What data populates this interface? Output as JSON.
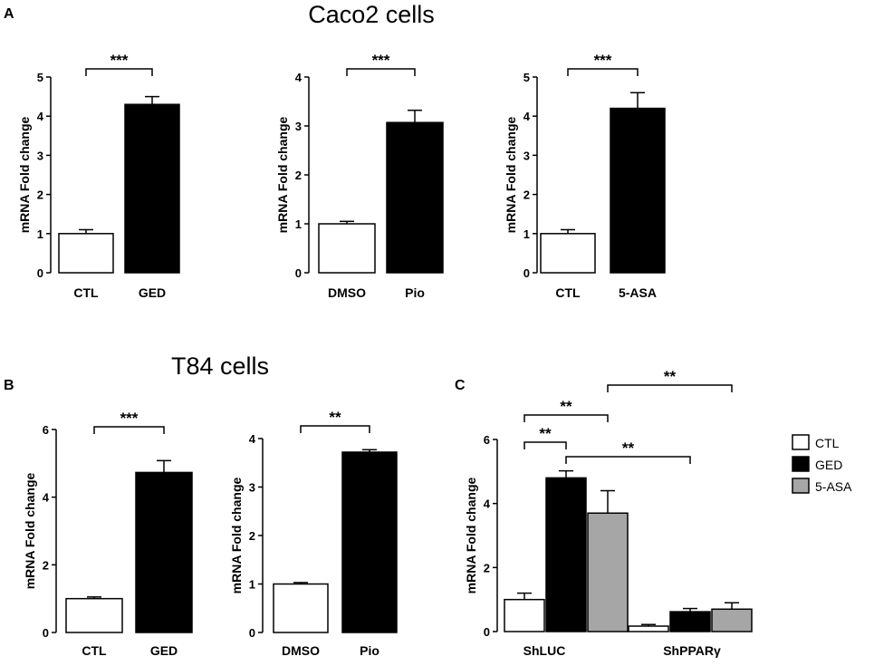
{
  "panel_labels": {
    "a": "A",
    "b": "B",
    "c": "C"
  },
  "section_titles": {
    "caco2": "Caco2 cells",
    "t84": "T84 cells"
  },
  "colors": {
    "CTL": "#ffffff",
    "GED": "#000000",
    "5-ASA": "#a6a6a6",
    "axis": "#000000"
  },
  "chart_data": [
    {
      "id": "A1",
      "type": "bar",
      "panel": "A",
      "categories": [
        "CTL",
        "GED"
      ],
      "values": [
        1.0,
        4.3
      ],
      "errors": [
        0.1,
        0.2
      ],
      "ylabel": "mRNA Fold change",
      "ylim": [
        0,
        5
      ],
      "yticks": [
        "0",
        "1",
        "2",
        "3",
        "4",
        "5"
      ],
      "significance": [
        {
          "from": 0,
          "to": 1,
          "label": "***"
        }
      ]
    },
    {
      "id": "A2",
      "type": "bar",
      "panel": "A",
      "categories": [
        "DMSO",
        "Pio"
      ],
      "values": [
        1.0,
        3.07
      ],
      "errors": [
        0.05,
        0.25
      ],
      "ylabel": "mRNA Fold change",
      "ylim": [
        0,
        4
      ],
      "yticks": [
        "0",
        "1",
        "2",
        "3",
        "4"
      ],
      "significance": [
        {
          "from": 0,
          "to": 1,
          "label": "***"
        }
      ]
    },
    {
      "id": "A3",
      "type": "bar",
      "panel": "A",
      "categories": [
        "CTL",
        "5-ASA"
      ],
      "values": [
        1.0,
        4.2
      ],
      "errors": [
        0.1,
        0.4
      ],
      "ylabel": "mRNA Fold change",
      "ylim": [
        0,
        5
      ],
      "yticks": [
        "0",
        "1",
        "2",
        "3",
        "4",
        "5"
      ],
      "significance": [
        {
          "from": 0,
          "to": 1,
          "label": "***"
        }
      ]
    },
    {
      "id": "B1",
      "type": "bar",
      "panel": "B",
      "categories": [
        "CTL",
        "GED"
      ],
      "values": [
        1.0,
        4.73
      ],
      "errors": [
        0.05,
        0.35
      ],
      "ylabel": "mRNA Fold change",
      "ylim": [
        0,
        6
      ],
      "yticks": [
        "0",
        "2",
        "4",
        "6"
      ],
      "significance": [
        {
          "from": 0,
          "to": 1,
          "label": "***"
        }
      ]
    },
    {
      "id": "B2",
      "type": "bar",
      "panel": "B",
      "categories": [
        "DMSO",
        "Pio"
      ],
      "values": [
        1.0,
        3.72
      ],
      "errors": [
        0.03,
        0.05
      ],
      "ylabel": "mRNA Fold change",
      "ylim": [
        0,
        4
      ],
      "yticks": [
        "0",
        "1",
        "2",
        "3",
        "4"
      ],
      "significance": [
        {
          "from": 0,
          "to": 1,
          "label": "**"
        }
      ]
    },
    {
      "id": "C",
      "type": "bar",
      "panel": "C",
      "categories": [
        "ShLUC",
        "ShPPARγ"
      ],
      "series": [
        {
          "name": "CTL",
          "values": [
            1.0,
            0.17
          ],
          "errors": [
            0.2,
            0.05
          ]
        },
        {
          "name": "GED",
          "values": [
            4.8,
            0.62
          ],
          "errors": [
            0.22,
            0.1
          ]
        },
        {
          "name": "5-ASA",
          "values": [
            3.7,
            0.7
          ],
          "errors": [
            0.7,
            0.2
          ]
        }
      ],
      "ylabel": "mRNA Fold change",
      "ylim": [
        0,
        6
      ],
      "yticks": [
        "0",
        "2",
        "4",
        "6"
      ],
      "legend": "right",
      "significance": [
        {
          "from": [
            0,
            0
          ],
          "to": [
            0,
            1
          ],
          "label": "**"
        },
        {
          "from": [
            0,
            0
          ],
          "to": [
            0,
            2
          ],
          "label": "**"
        },
        {
          "from": [
            0,
            1
          ],
          "to": [
            1,
            1
          ],
          "label": "**"
        },
        {
          "from": [
            0,
            2
          ],
          "to": [
            1,
            2
          ],
          "label": "**"
        }
      ]
    }
  ]
}
